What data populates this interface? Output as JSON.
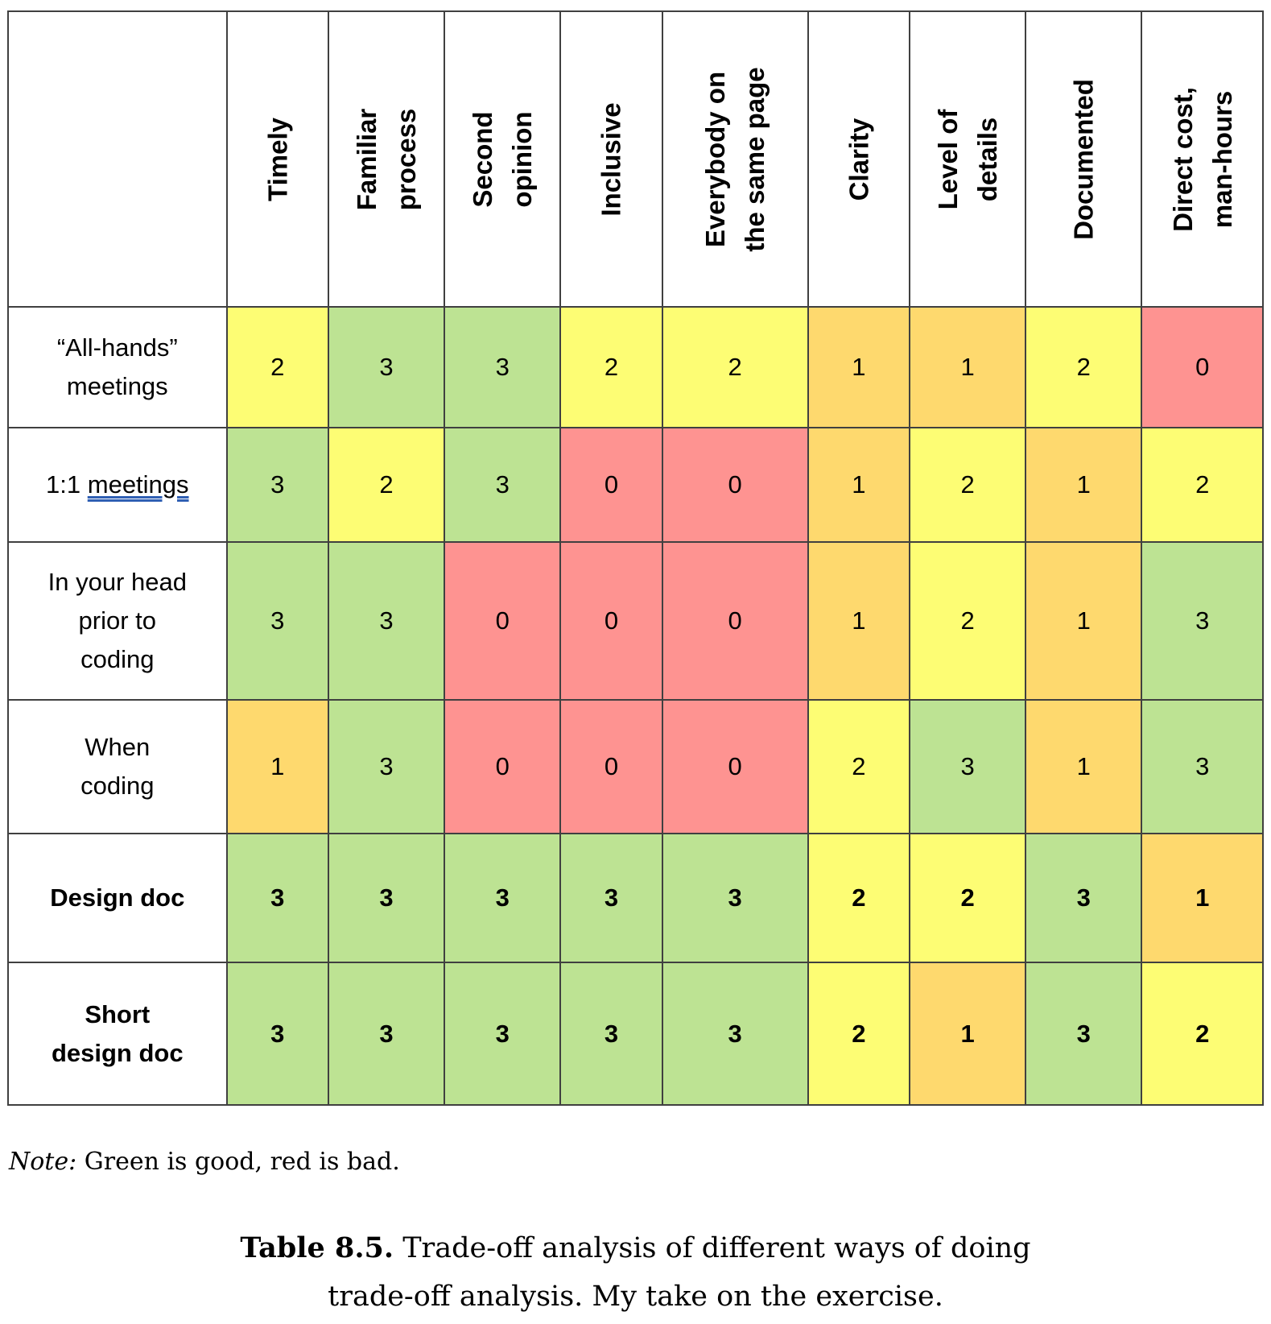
{
  "table": {
    "columns": [
      {
        "lines": [
          "Timely"
        ]
      },
      {
        "lines": [
          "Familiar",
          "process"
        ]
      },
      {
        "lines": [
          "Second",
          "opinion"
        ]
      },
      {
        "lines": [
          "Inclusive"
        ]
      },
      {
        "lines": [
          "Everybody on",
          "the same page"
        ]
      },
      {
        "lines": [
          "Clarity"
        ]
      },
      {
        "lines": [
          "Level of",
          "details"
        ]
      },
      {
        "lines": [
          "Documented"
        ]
      },
      {
        "lines": [
          "Direct cost,",
          "man-hours"
        ]
      }
    ],
    "rows": [
      {
        "label_lines": [
          "“All-hands”",
          "meetings"
        ],
        "bold": false,
        "scores": [
          2,
          3,
          3,
          2,
          2,
          1,
          1,
          2,
          0
        ]
      },
      {
        "label_lines": [
          "1:1 meetings"
        ],
        "bold": false,
        "scores": [
          3,
          2,
          3,
          0,
          0,
          1,
          2,
          1,
          2
        ]
      },
      {
        "label_lines": [
          "In your head",
          "prior to",
          "coding"
        ],
        "bold": false,
        "scores": [
          3,
          3,
          0,
          0,
          0,
          1,
          2,
          1,
          3
        ]
      },
      {
        "label_lines": [
          "When",
          "coding"
        ],
        "bold": false,
        "scores": [
          1,
          3,
          0,
          0,
          0,
          2,
          3,
          1,
          3
        ]
      },
      {
        "label_lines": [
          "Design doc"
        ],
        "bold": true,
        "scores": [
          3,
          3,
          3,
          3,
          3,
          2,
          2,
          3,
          1
        ]
      },
      {
        "label_lines": [
          "Short",
          "design doc"
        ],
        "bold": true,
        "scores": [
          3,
          3,
          3,
          3,
          3,
          2,
          1,
          3,
          2
        ]
      }
    ],
    "score_colors": {
      "0": "#fe9391",
      "1": "#fed96e",
      "2": "#fdfd74",
      "3": "#bde393"
    }
  },
  "note": {
    "prefix": "Note:",
    "text": " Green is good, red is bad."
  },
  "caption": {
    "label": "Table 8.5.",
    "line1": " Trade-off analysis of different ways of doing",
    "line2": "trade-off analysis. My take on the exercise."
  }
}
